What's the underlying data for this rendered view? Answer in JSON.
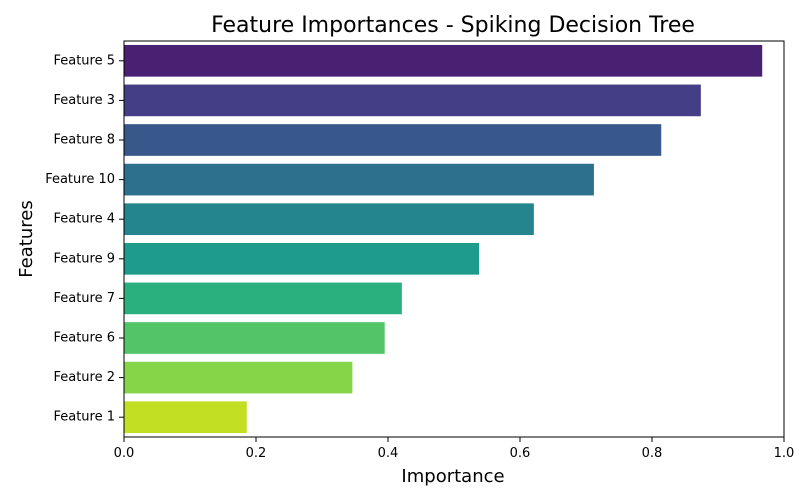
{
  "chart_data": {
    "type": "bar",
    "orientation": "horizontal",
    "title": "Feature Importances - Spiking Decision Tree",
    "xlabel": "Importance",
    "ylabel": "Features",
    "xlim": [
      0,
      1.0
    ],
    "x_ticks": [
      0.0,
      0.2,
      0.4,
      0.6,
      0.8,
      1.0
    ],
    "x_tick_labels": [
      "0.0",
      "0.2",
      "0.4",
      "0.6",
      "0.8",
      "1.0"
    ],
    "grid": false,
    "legend": "none",
    "palette": "viridis",
    "categories": [
      "Feature 5",
      "Feature 3",
      "Feature 8",
      "Feature 10",
      "Feature 4",
      "Feature 9",
      "Feature 7",
      "Feature 6",
      "Feature 2",
      "Feature 1"
    ],
    "values": [
      0.967,
      0.874,
      0.814,
      0.712,
      0.621,
      0.538,
      0.421,
      0.395,
      0.346,
      0.186
    ],
    "colors": [
      "#482173",
      "#433e85",
      "#38588c",
      "#2d708e",
      "#25858e",
      "#1e9b8a",
      "#2ab07f",
      "#52c569",
      "#86d549",
      "#c2df23"
    ]
  }
}
